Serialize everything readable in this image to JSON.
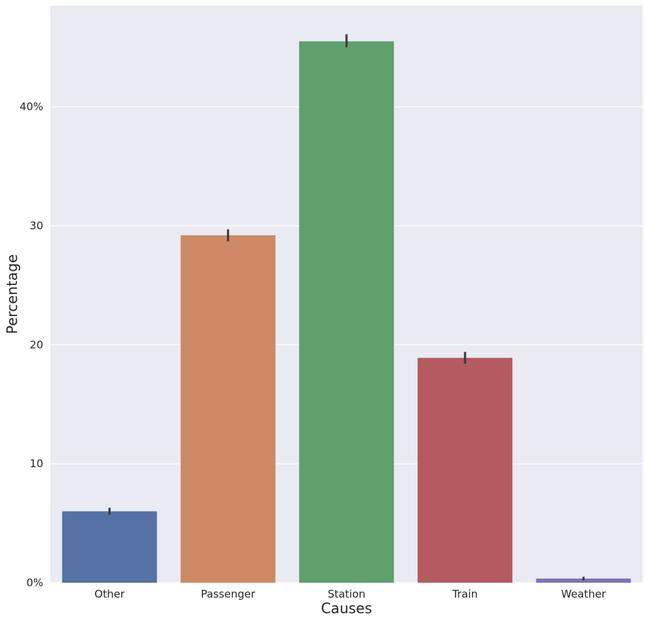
{
  "chart_data": {
    "type": "bar",
    "title": "",
    "xlabel": "Causes",
    "ylabel": "Percentage",
    "categories": [
      "Other",
      "Passenger",
      "Station",
      "Train",
      "Weather"
    ],
    "values": [
      6.0,
      29.2,
      45.5,
      18.9,
      0.35
    ],
    "error_bars": [
      [
        5.7,
        6.3
      ],
      [
        28.7,
        29.7
      ],
      [
        45.0,
        46.1
      ],
      [
        18.4,
        19.4
      ],
      [
        0.2,
        0.5
      ]
    ],
    "ylim": [
      0,
      48.5
    ],
    "yticks": [
      0,
      10,
      20,
      30,
      40
    ],
    "ytick_labels": [
      "0%",
      "10",
      "20",
      "30",
      "40%"
    ],
    "colors": [
      "#5571a5",
      "#cd8963",
      "#5fa06d",
      "#b55b5f",
      "#8172b2"
    ],
    "error_color": "#3a3a3a",
    "background_color": "#eaeaf2",
    "grid": true,
    "legend": "none"
  }
}
